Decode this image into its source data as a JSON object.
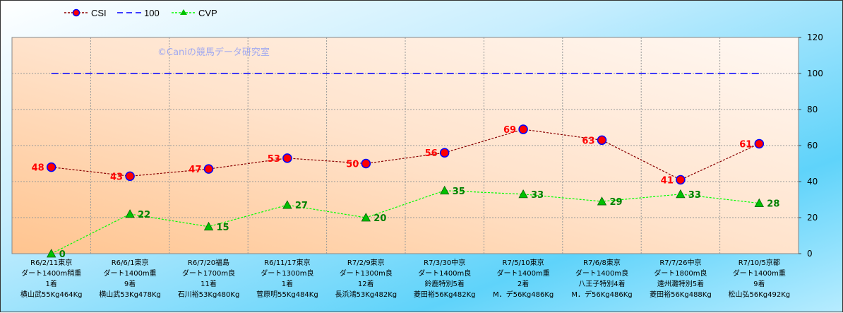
{
  "chart_data": {
    "type": "line",
    "title": "",
    "watermark": "©Caniの競馬データ研究室",
    "legend_position": "top-left",
    "grid": true,
    "ylim": [
      0,
      120
    ],
    "yticks": [
      0,
      20,
      40,
      60,
      80,
      100,
      120
    ],
    "y_axis_side": "right",
    "categories": [
      [
        "R6/2/11東京",
        "ダート1400m稍重",
        "1着",
        "横山武55Kg464Kg"
      ],
      [
        "R6/6/1東京",
        "ダート1400m重",
        "9着",
        "横山武53Kg478Kg"
      ],
      [
        "R6/7/20福島",
        "ダート1700m良",
        "11着",
        "石川裕53Kg480Kg"
      ],
      [
        "R6/11/17東京",
        "ダート1300m良",
        "1着",
        "菅原明55Kg484Kg"
      ],
      [
        "R7/2/9東京",
        "ダート1300m良",
        "12着",
        "長浜鴻53Kg482Kg"
      ],
      [
        "R7/3/30中京",
        "ダート1400m良",
        "鈴鹿特別5着",
        "菱田裕56Kg482Kg"
      ],
      [
        "R7/5/10東京",
        "ダート1400m重",
        "2着",
        "M．デ56Kg486Kg"
      ],
      [
        "R7/6/8東京",
        "ダート1400m良",
        "八王子特別4着",
        "M．デ56Kg486Kg"
      ],
      [
        "R7/7/26中京",
        "ダート1800m良",
        "遠州灘特別5着",
        "菱田裕56Kg488Kg"
      ],
      [
        "R7/10/5京都",
        "ダート1400m重",
        "9着",
        "松山弘56Kg492Kg"
      ]
    ],
    "series": [
      {
        "name": "CSI",
        "values": [
          48,
          43,
          47,
          53,
          50,
          56,
          69,
          63,
          41,
          61
        ],
        "color": "#8b0000",
        "marker_color": "#ff0000",
        "marker_edge": "#0000ff",
        "style": "dotted-circle"
      },
      {
        "name": "100",
        "values": [
          100,
          100,
          100,
          100,
          100,
          100,
          100,
          100,
          100,
          100
        ],
        "color": "#0000ff",
        "style": "dashed"
      },
      {
        "name": "CVP",
        "values": [
          0,
          22,
          15,
          27,
          20,
          35,
          33,
          29,
          33,
          28
        ],
        "color": "#00ff00",
        "marker_color": "#00c000",
        "style": "dotted-triangle"
      }
    ]
  }
}
